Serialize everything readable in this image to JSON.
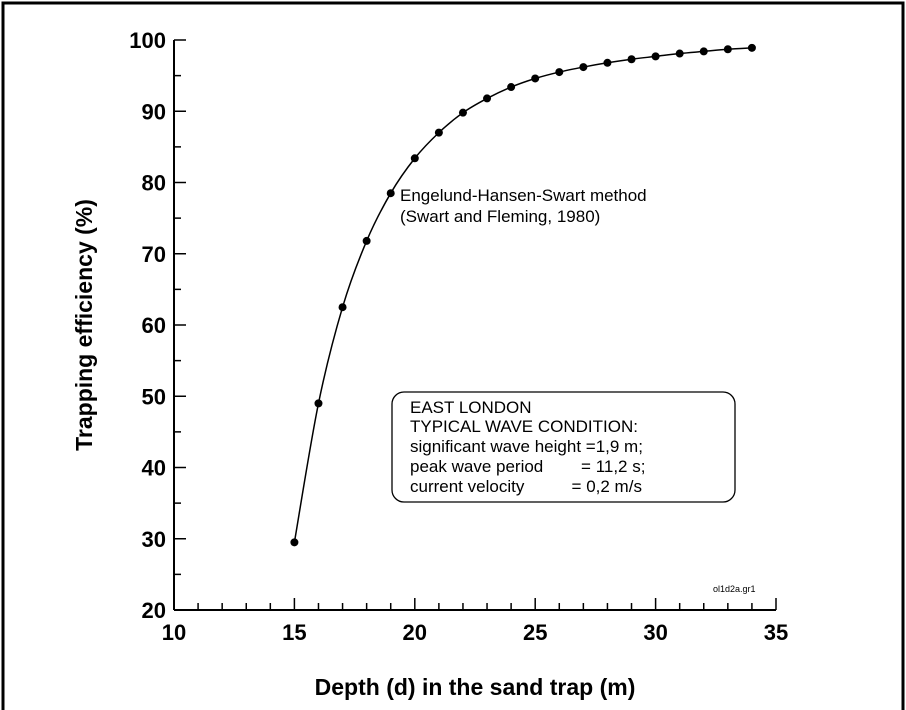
{
  "chart_data": {
    "type": "line",
    "xlabel": "Depth (d) in the sand trap (m)",
    "ylabel": "Trapping efficiency (%)",
    "xlim": [
      10,
      35
    ],
    "ylim": [
      20,
      100
    ],
    "x_ticks": [
      "10",
      "15",
      "20",
      "25",
      "30",
      "35"
    ],
    "y_ticks": [
      "20",
      "30",
      "40",
      "50",
      "60",
      "70",
      "80",
      "90",
      "100"
    ],
    "grid": false,
    "series": [
      {
        "x": [
          15,
          16,
          17,
          18,
          19,
          20,
          21,
          22,
          23,
          24,
          25,
          26,
          27,
          28,
          29,
          30,
          31,
          32,
          33,
          34
        ],
        "y": [
          29.5,
          49.0,
          62.5,
          71.8,
          78.5,
          83.4,
          87.0,
          89.8,
          91.8,
          93.4,
          94.6,
          95.5,
          96.2,
          96.8,
          97.3,
          97.7,
          98.1,
          98.4,
          98.7,
          98.9
        ]
      }
    ],
    "annotations": {
      "method_line1": "Engelund-Hansen-Swart method",
      "method_line2": "(Swart and Fleming, 1980)",
      "box": {
        "line1": "EAST LONDON",
        "line2": "TYPICAL WAVE CONDITION:",
        "line3": "significant wave height =1,9 m;",
        "line4": "peak wave period        = 11,2 s;",
        "line5": "current velocity          = 0,2 m/s"
      },
      "file_code": "ol1d2a.gr1"
    }
  }
}
